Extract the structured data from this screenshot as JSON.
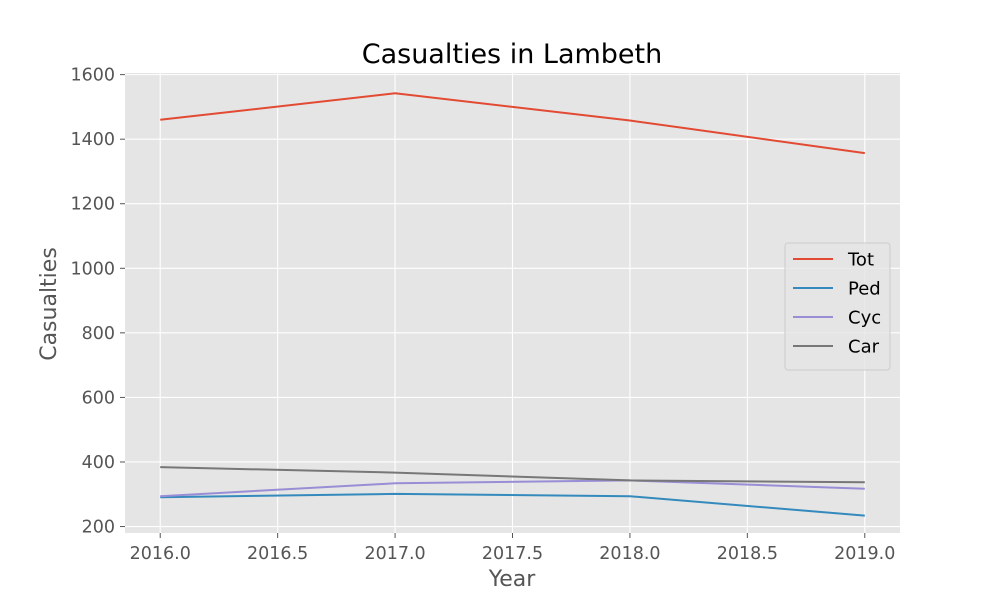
{
  "chart_data": {
    "type": "line",
    "title": "Casualties in Lambeth",
    "xlabel": "Year",
    "ylabel": "Casualties",
    "x": [
      2016,
      2017,
      2018,
      2019
    ],
    "xlim": [
      2015.85,
      2019.15
    ],
    "ylim": [
      180,
      1605
    ],
    "x_ticks": [
      2016.0,
      2016.5,
      2017.0,
      2017.5,
      2018.0,
      2018.5,
      2019.0
    ],
    "x_tick_labels": [
      "2016.0",
      "2016.5",
      "2017.0",
      "2017.5",
      "2018.0",
      "2018.5",
      "2019.0"
    ],
    "y_ticks": [
      200,
      400,
      600,
      800,
      1000,
      1200,
      1400,
      1600
    ],
    "y_tick_labels": [
      "200",
      "400",
      "600",
      "800",
      "1000",
      "1200",
      "1400",
      "1600"
    ],
    "grid": true,
    "legend_position": "center-right",
    "series": [
      {
        "name": "Tot",
        "color": "#E24A33",
        "values": [
          1460,
          1542,
          1458,
          1357
        ]
      },
      {
        "name": "Ped",
        "color": "#348ABD",
        "values": [
          291,
          301,
          294,
          234
        ]
      },
      {
        "name": "Cyc",
        "color": "#988ED5",
        "values": [
          294,
          334,
          343,
          317
        ]
      },
      {
        "name": "Car",
        "color": "#777777",
        "values": [
          384,
          367,
          343,
          337
        ]
      }
    ]
  }
}
